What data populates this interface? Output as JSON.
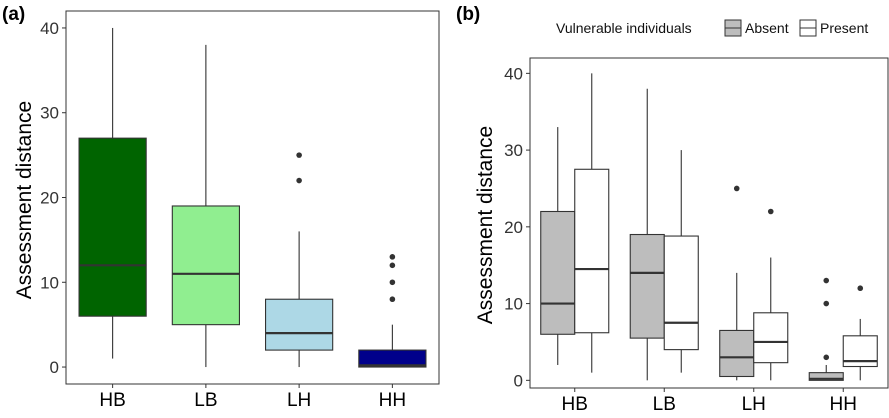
{
  "chart_data": [
    {
      "panel": "(a)",
      "type": "boxplot",
      "ylabel": "Assessment distance",
      "xlabel": "",
      "ylim": [
        -2,
        42
      ],
      "y_ticks": [
        0,
        10,
        20,
        30,
        40
      ],
      "categories": [
        "HB",
        "LB",
        "LH",
        "HH"
      ],
      "colors": [
        "#006400",
        "#90EE90",
        "#ADD8E6",
        "#00008B"
      ],
      "boxes": [
        {
          "category": "HB",
          "min": 1,
          "q1": 6,
          "median": 12,
          "q3": 27,
          "max": 40,
          "outliers": []
        },
        {
          "category": "LB",
          "min": 0,
          "q1": 5,
          "median": 11,
          "q3": 19,
          "max": 38,
          "outliers": []
        },
        {
          "category": "LH",
          "min": 0,
          "q1": 2,
          "median": 4,
          "q3": 8,
          "max": 16,
          "outliers": [
            22,
            25
          ]
        },
        {
          "category": "HH",
          "min": 0,
          "q1": 0,
          "median": 0.2,
          "q3": 2,
          "max": 5,
          "outliers": [
            8,
            10,
            12,
            13
          ]
        }
      ]
    },
    {
      "panel": "(b)",
      "type": "boxplot",
      "ylabel": "Assessment distance",
      "xlabel": "",
      "ylim": [
        -1,
        42
      ],
      "y_ticks": [
        0,
        10,
        20,
        30,
        40
      ],
      "categories": [
        "HB",
        "LB",
        "LH",
        "HH"
      ],
      "legend": {
        "title": "Vulnerable individuals",
        "position": "top",
        "entries": [
          {
            "name": "Absent",
            "color": "#bdbdbd"
          },
          {
            "name": "Present",
            "color": "#ffffff"
          }
        ]
      },
      "series": [
        {
          "name": "Absent",
          "color": "#bdbdbd",
          "boxes": [
            {
              "category": "HB",
              "min": 2,
              "q1": 6,
              "median": 10,
              "q3": 22,
              "max": 33,
              "outliers": []
            },
            {
              "category": "LB",
              "min": 0,
              "q1": 5.5,
              "median": 14,
              "q3": 19,
              "max": 38,
              "outliers": []
            },
            {
              "category": "LH",
              "min": 0,
              "q1": 0.5,
              "median": 3,
              "q3": 6.5,
              "max": 14,
              "outliers": [
                25
              ]
            },
            {
              "category": "HH",
              "min": 0,
              "q1": 0,
              "median": 0.2,
              "q3": 1,
              "max": 2,
              "outliers": [
                3,
                10,
                13
              ]
            }
          ]
        },
        {
          "name": "Present",
          "color": "#ffffff",
          "boxes": [
            {
              "category": "HB",
              "min": 1,
              "q1": 6.2,
              "median": 14.5,
              "q3": 27.5,
              "max": 40,
              "outliers": []
            },
            {
              "category": "LB",
              "min": 1,
              "q1": 4,
              "median": 7.5,
              "q3": 18.8,
              "max": 30,
              "outliers": []
            },
            {
              "category": "LH",
              "min": 0,
              "q1": 2.3,
              "median": 5,
              "q3": 8.8,
              "max": 16,
              "outliers": [
                22
              ]
            },
            {
              "category": "HH",
              "min": 0,
              "q1": 1.8,
              "median": 2.5,
              "q3": 5.8,
              "max": 8,
              "outliers": [
                12
              ]
            }
          ]
        }
      ]
    }
  ]
}
